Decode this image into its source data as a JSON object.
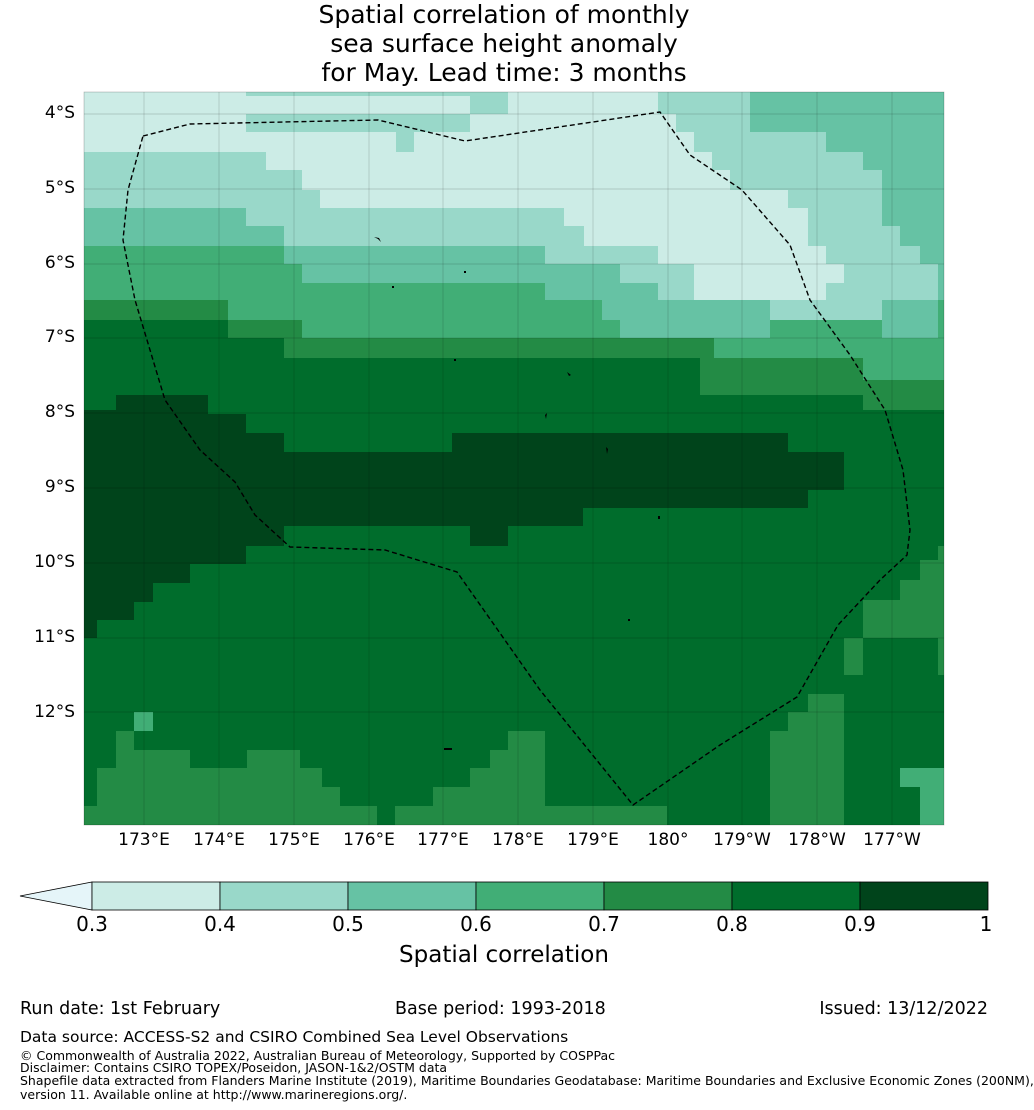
{
  "title_lines": [
    "Spatial correlation of monthly",
    "sea surface height anomaly",
    "for May. Lead time: 3 months"
  ],
  "map": {
    "lat_ticks": [
      "4°S",
      "5°S",
      "6°S",
      "7°S",
      "8°S",
      "9°S",
      "10°S",
      "11°S",
      "12°S"
    ],
    "lon_ticks": [
      "173°E",
      "174°E",
      "175°E",
      "176°E",
      "177°E",
      "178°E",
      "179°E",
      "180°",
      "179°W",
      "178°W",
      "177°W"
    ],
    "boundary": "dashed EEZ outline",
    "band_colors": [
      "#ccece6",
      "#99d8c9",
      "#66c2a4",
      "#41ae76",
      "#238b45",
      "#006d2c",
      "#00441b"
    ]
  },
  "colorbar": {
    "ticks": [
      "0.3",
      "0.4",
      "0.5",
      "0.6",
      "0.7",
      "0.8",
      "0.9",
      "1"
    ],
    "under_color": "#e5f5f9",
    "colors": [
      "#ccece6",
      "#99d8c9",
      "#66c2a4",
      "#41ae76",
      "#238b45",
      "#006d2c",
      "#00441b"
    ],
    "label": "Spatial correlation"
  },
  "footer": {
    "run_date": "Run date: 1st February",
    "base_period": "Base period: 1993-2018",
    "issued": "Issued: 13/12/2022",
    "data_source": "Data source: ACCESS-S2 and CSIRO Combined Sea Level Observations",
    "copyright": "© Commonwealth of Australia 2022, Australian Bureau of Meteorology, Supported by COSPPac",
    "disclaimer": "Disclaimer: Contains CSIRO TOPEX/Poseidon, JASON-1&2/OSTM data",
    "shapefile_1": "Shapefile data extracted from Flanders Marine Institute (2019), Maritime Boundaries Geodatabase: Maritime Boundaries and Exclusive Economic Zones (200NM),",
    "shapefile_2": "version 11. Available online at http://www.marineregions.org/."
  }
}
